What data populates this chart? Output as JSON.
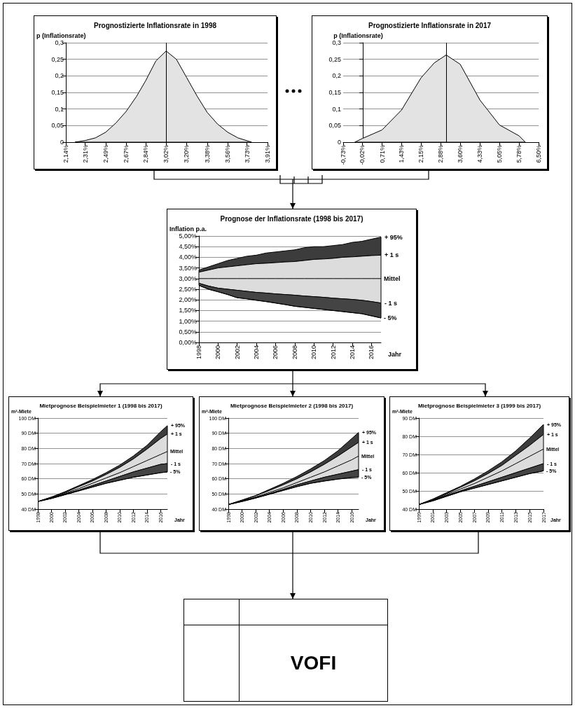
{
  "chart_data": [
    {
      "type": "area",
      "title": "Prognostizierte Inflationsrate in 1998",
      "ylabel": "p (Inflationsrate)",
      "x": [
        2.22,
        2.31,
        2.4,
        2.49,
        2.58,
        2.67,
        2.76,
        2.84,
        2.93,
        3.02,
        3.11,
        3.2,
        3.29,
        3.38,
        3.47,
        3.56,
        3.65,
        3.77
      ],
      "series": [
        {
          "color": "#e3e3e3",
          "values": [
            0,
            0.005,
            0.013,
            0.03,
            0.058,
            0.093,
            0.138,
            0.185,
            0.245,
            0.275,
            0.25,
            0.195,
            0.14,
            0.09,
            0.055,
            0.03,
            0.013,
            0
          ]
        }
      ],
      "xlim": [
        2.14,
        3.91
      ],
      "xticks": [
        {
          "value": 2.14,
          "label": "2,14%"
        },
        {
          "value": 2.31,
          "label": "2,31%"
        },
        {
          "value": 2.49,
          "label": "2,49%"
        },
        {
          "value": 2.67,
          "label": "2,67%"
        },
        {
          "value": 2.84,
          "label": "2,84%"
        },
        {
          "value": 3.02,
          "label": "3,02%"
        },
        {
          "value": 3.2,
          "label": "3,20%"
        },
        {
          "value": 3.38,
          "label": "3,38%"
        },
        {
          "value": 3.56,
          "label": "3,56%"
        },
        {
          "value": 3.73,
          "label": "3,73%"
        },
        {
          "value": 3.91,
          "label": "3,91%"
        }
      ],
      "ylim": [
        0,
        0.3
      ],
      "yticks": [
        0,
        {
          "value": 0.05,
          "label": "0,05"
        },
        {
          "value": 0.1,
          "label": "0,1"
        },
        {
          "value": 0.15,
          "label": "0,15"
        },
        {
          "value": 0.2,
          "label": "0,2"
        },
        {
          "value": 0.25,
          "label": "0,25"
        },
        {
          "value": 0.3,
          "label": "0,3"
        }
      ],
      "grid": "y",
      "ref_lines": [
        {
          "axis": "x",
          "value": 3.02,
          "color": "#000000"
        }
      ]
    },
    {
      "type": "area",
      "title": "Prognostizierte Inflationsrate in 2017",
      "ylabel": "p (Inflationsrate)",
      "x": [
        -0.3,
        -0.02,
        0.71,
        1.43,
        2.15,
        2.64,
        3.08,
        3.6,
        4.33,
        5.05,
        5.78,
        6.01
      ],
      "series": [
        {
          "color": "#e3e3e3",
          "values": [
            0,
            0.011,
            0.037,
            0.097,
            0.194,
            0.239,
            0.263,
            0.235,
            0.127,
            0.052,
            0.019,
            0
          ]
        }
      ],
      "xlim": [
        -0.73,
        6.5
      ],
      "xticks": [
        {
          "value": -0.73,
          "label": "-0,73%"
        },
        {
          "value": -0.02,
          "label": "-0,02%"
        },
        {
          "value": 0.71,
          "label": "0,71%"
        },
        {
          "value": 1.43,
          "label": "1,43%"
        },
        {
          "value": 2.15,
          "label": "2,15%"
        },
        {
          "value": 2.88,
          "label": "2,88%"
        },
        {
          "value": 3.6,
          "label": "3,60%"
        },
        {
          "value": 4.33,
          "label": "4,33%"
        },
        {
          "value": 5.05,
          "label": "5,05%"
        },
        {
          "value": 5.78,
          "label": "5,78%"
        },
        {
          "value": 6.5,
          "label": "6,50%"
        }
      ],
      "ylim": [
        0,
        0.3
      ],
      "yticks": [
        0,
        {
          "value": 0.05,
          "label": "0,05"
        },
        {
          "value": 0.1,
          "label": "0,1"
        },
        {
          "value": 0.15,
          "label": "0,15"
        },
        {
          "value": 0.2,
          "label": "0,2"
        },
        {
          "value": 0.25,
          "label": "0,25"
        },
        {
          "value": 0.3,
          "label": "0,3"
        }
      ],
      "grid": "y",
      "ref_lines": [
        {
          "axis": "x",
          "value": 3.08,
          "color": "#000000"
        }
      ]
    },
    {
      "type": "area",
      "title": "Prognose der Inflationsrate (1998 bis 2017)",
      "ylabel": "Inflation p.a.",
      "xlabel": "Jahr",
      "x": [
        1998,
        1999,
        2000,
        2001,
        2002,
        2003,
        2004,
        2005,
        2006,
        2007,
        2008,
        2009,
        2010,
        2011,
        2012,
        2013,
        2014,
        2015,
        2016,
        2017
      ],
      "series": [
        {
          "name": "+ 95%",
          "color": "#3c3c3c",
          "values": [
            3.4,
            3.55,
            3.7,
            3.85,
            3.95,
            4.05,
            4.1,
            4.2,
            4.25,
            4.3,
            4.35,
            4.45,
            4.5,
            4.5,
            4.55,
            4.6,
            4.7,
            4.75,
            4.85,
            4.95
          ]
        },
        {
          "name": "+ 1 s",
          "color": "#dcdcdc",
          "values": [
            3.3,
            3.4,
            3.5,
            3.55,
            3.6,
            3.65,
            3.7,
            3.72,
            3.75,
            3.78,
            3.8,
            3.85,
            3.9,
            3.92,
            3.95,
            4,
            4.02,
            4.05,
            4.08,
            4.1
          ]
        },
        {
          "name": "Mittel",
          "type": "line",
          "color": "#000000",
          "values": [
            3,
            3,
            3,
            3,
            3,
            3,
            3,
            3,
            3,
            3,
            3,
            3,
            3,
            3,
            3,
            3,
            3,
            3,
            3,
            3
          ]
        },
        {
          "name": "- 1 s",
          "color": "#444444",
          "values": [
            2.78,
            2.65,
            2.55,
            2.5,
            2.45,
            2.4,
            2.35,
            2.32,
            2.28,
            2.25,
            2.22,
            2.18,
            2.15,
            2.12,
            2.08,
            2.05,
            2.02,
            1.98,
            1.92,
            1.85
          ]
        },
        {
          "name": "- 5%",
          "type": "line",
          "color": "#000000",
          "values": [
            2.68,
            2.5,
            2.38,
            2.25,
            2.1,
            2.05,
            1.98,
            1.92,
            1.85,
            1.78,
            1.7,
            1.65,
            1.6,
            1.55,
            1.5,
            1.45,
            1.4,
            1.35,
            1.25,
            1.15
          ]
        }
      ],
      "xlim": [
        1998,
        2017
      ],
      "xticks": [
        1998,
        2000,
        2002,
        2004,
        2006,
        2008,
        2010,
        2012,
        2014,
        2016
      ],
      "ylim": [
        0,
        5
      ],
      "yticks": [
        {
          "value": 0,
          "label": "0,00%"
        },
        {
          "value": 0.5,
          "label": "0,50%"
        },
        {
          "value": 1,
          "label": "1,00%"
        },
        {
          "value": 1.5,
          "label": "1,50%"
        },
        {
          "value": 2,
          "label": "2,00%"
        },
        {
          "value": 2.5,
          "label": "2,50%"
        },
        {
          "value": 3,
          "label": "3,00%"
        },
        {
          "value": 3.5,
          "label": "3,50%"
        },
        {
          "value": 4,
          "label": "4,00%"
        },
        {
          "value": 4.5,
          "label": "4,50%"
        },
        {
          "value": 5,
          "label": "5,00%"
        }
      ],
      "grid": "y"
    },
    {
      "type": "area",
      "title": "Mietprognose Beispielmieter 1 (1998 bis 2017)",
      "ylabel": "m²-Miete",
      "xlabel": "Jahr",
      "x": [
        1998,
        2000,
        2002,
        2004,
        2006,
        2008,
        2010,
        2012,
        2014,
        2016,
        2017
      ],
      "series": [
        {
          "name": "+ 95%",
          "color": "#3c3c3c",
          "values": [
            45,
            48,
            51.5,
            55.5,
            59.5,
            64,
            69,
            75,
            82,
            91,
            95
          ]
        },
        {
          "name": "+ 1 s",
          "color": "#dcdcdc",
          "values": [
            45,
            47.8,
            51,
            54.8,
            58.5,
            62.8,
            67.5,
            73,
            79.5,
            86.5,
            89.5
          ]
        },
        {
          "name": "Mittel",
          "type": "line",
          "color": "#000000",
          "values": [
            45,
            47.5,
            50.5,
            53.5,
            57,
            60.5,
            64,
            68,
            72,
            76,
            78
          ]
        },
        {
          "name": "- 1 s",
          "color": "#444444",
          "values": [
            45,
            47.2,
            50,
            52.5,
            55.5,
            58.5,
            61.5,
            64.5,
            67,
            69.5,
            70
          ]
        },
        {
          "name": "- 5%",
          "type": "line",
          "color": "#000000",
          "values": [
            45,
            47,
            49.5,
            52,
            54.5,
            57,
            59,
            61,
            62.5,
            64,
            64.5
          ]
        }
      ],
      "xlim": [
        1998,
        2017
      ],
      "xticks": [
        1998,
        2000,
        2002,
        2004,
        2006,
        2008,
        2010,
        2012,
        2014,
        2016
      ],
      "ylim": [
        40,
        100
      ],
      "yticks": [
        {
          "value": 40,
          "label": "40 DM"
        },
        {
          "value": 50,
          "label": "50 DM"
        },
        {
          "value": 60,
          "label": "60 DM"
        },
        {
          "value": 70,
          "label": "70 DM"
        },
        {
          "value": 80,
          "label": "80 DM"
        },
        {
          "value": 90,
          "label": "90 DM"
        },
        {
          "value": 100,
          "label": "100 DM"
        }
      ],
      "grid": "y"
    },
    {
      "type": "area",
      "title": "Mietprognose Beispielmieter 2 (1998 bis 2017)",
      "ylabel": "m²-Miete",
      "xlabel": "Jahr",
      "x": [
        1998,
        2000,
        2002,
        2004,
        2006,
        2008,
        2010,
        2012,
        2014,
        2016,
        2017
      ],
      "series": [
        {
          "name": "+ 95%",
          "color": "#3c3c3c",
          "values": [
            43,
            46,
            49,
            53,
            57,
            61.5,
            66.5,
            72,
            78.5,
            86.5,
            90.5
          ]
        },
        {
          "name": "+ 1 s",
          "color": "#dcdcdc",
          "values": [
            43,
            45.8,
            48.8,
            52.3,
            56,
            60,
            64.5,
            69.5,
            75,
            81,
            84
          ]
        },
        {
          "name": "Mittel",
          "type": "line",
          "color": "#000000",
          "values": [
            43,
            45.5,
            48,
            51,
            54,
            57.5,
            61,
            64.5,
            68.5,
            72.5,
            75
          ]
        },
        {
          "name": "- 1 s",
          "color": "#444444",
          "values": [
            43,
            45.3,
            47.6,
            50.2,
            53,
            56,
            58.5,
            61,
            63,
            65,
            66
          ]
        },
        {
          "name": "- 5%",
          "type": "line",
          "color": "#000000",
          "values": [
            43,
            45,
            47.3,
            49.8,
            52.3,
            54.8,
            57,
            58.5,
            59.8,
            60.8,
            61
          ]
        }
      ],
      "xlim": [
        1998,
        2017
      ],
      "xticks": [
        1998,
        2000,
        2002,
        2004,
        2006,
        2008,
        2010,
        2012,
        2014,
        2016
      ],
      "ylim": [
        40,
        100
      ],
      "yticks": [
        {
          "value": 40,
          "label": "40 DM"
        },
        {
          "value": 50,
          "label": "50 DM"
        },
        {
          "value": 60,
          "label": "60 DM"
        },
        {
          "value": 70,
          "label": "70 DM"
        },
        {
          "value": 80,
          "label": "80 DM"
        },
        {
          "value": 90,
          "label": "90 DM"
        },
        {
          "value": 100,
          "label": "100 DM"
        }
      ],
      "grid": "y"
    },
    {
      "type": "area",
      "title": "Mietprognose Beispielmieter 3 (1999 bis 2017)",
      "ylabel": "m²-Miete",
      "xlabel": "Jahr",
      "x": [
        1999,
        2001,
        2003,
        2005,
        2007,
        2009,
        2011,
        2013,
        2015,
        2017
      ],
      "series": [
        {
          "name": "+ 95%",
          "color": "#3c3c3c",
          "values": [
            42.5,
            45.5,
            49,
            52.5,
            56.5,
            61,
            66,
            72,
            79,
            86.5
          ]
        },
        {
          "name": "+ 1 s",
          "color": "#dcdcdc",
          "values": [
            42.5,
            45.3,
            48.5,
            52,
            55.5,
            59.5,
            64,
            69.5,
            75,
            81
          ]
        },
        {
          "name": "Mittel",
          "type": "line",
          "color": "#000000",
          "values": [
            42.5,
            45,
            48,
            51,
            54,
            57.5,
            61,
            65,
            69,
            73
          ]
        },
        {
          "name": "- 1 s",
          "color": "#444444",
          "values": [
            42.5,
            44.8,
            47.5,
            50,
            52.5,
            55,
            57.5,
            60,
            62.5,
            65
          ]
        },
        {
          "name": "- 5%",
          "type": "line",
          "color": "#000000",
          "values": [
            42.5,
            44.5,
            47,
            49.5,
            51.5,
            53.5,
            55.5,
            57.5,
            59.5,
            61
          ]
        }
      ],
      "xlim": [
        1999,
        2017
      ],
      "xticks": [
        1999,
        2001,
        2003,
        2005,
        2007,
        2009,
        2011,
        2013,
        2015,
        2017
      ],
      "ylim": [
        40,
        90
      ],
      "yticks": [
        {
          "value": 40,
          "label": "40 DM"
        },
        {
          "value": 50,
          "label": "50 DM"
        },
        {
          "value": 60,
          "label": "60 DM"
        },
        {
          "value": 70,
          "label": "70 DM"
        },
        {
          "value": 80,
          "label": "80 DM"
        },
        {
          "value": 90,
          "label": "90 DM"
        }
      ],
      "grid": "y"
    },
    {
      "type": "other",
      "title": "VOFI"
    }
  ]
}
